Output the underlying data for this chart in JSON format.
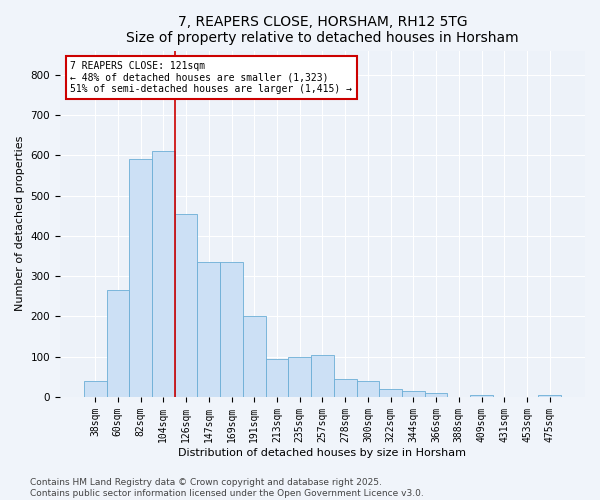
{
  "title": "7, REAPERS CLOSE, HORSHAM, RH12 5TG",
  "subtitle": "Size of property relative to detached houses in Horsham",
  "xlabel": "Distribution of detached houses by size in Horsham",
  "ylabel": "Number of detached properties",
  "categories": [
    "38sqm",
    "60sqm",
    "82sqm",
    "104sqm",
    "126sqm",
    "147sqm",
    "169sqm",
    "191sqm",
    "213sqm",
    "235sqm",
    "257sqm",
    "278sqm",
    "300sqm",
    "322sqm",
    "344sqm",
    "366sqm",
    "388sqm",
    "409sqm",
    "431sqm",
    "453sqm",
    "475sqm"
  ],
  "values": [
    40,
    265,
    590,
    610,
    455,
    335,
    335,
    200,
    95,
    100,
    105,
    45,
    40,
    20,
    15,
    10,
    0,
    5,
    0,
    0,
    5
  ],
  "bar_color": "#cce0f5",
  "bar_edge_color": "#6baed6",
  "vline_x": 4.0,
  "vline_color": "#cc0000",
  "annotation_text": "7 REAPERS CLOSE: 121sqm\n← 48% of detached houses are smaller (1,323)\n51% of semi-detached houses are larger (1,415) →",
  "annotation_box_facecolor": "#ffffff",
  "annotation_box_edgecolor": "#cc0000",
  "ylim": [
    0,
    860
  ],
  "yticks": [
    0,
    100,
    200,
    300,
    400,
    500,
    600,
    700,
    800
  ],
  "fig_facecolor": "#f0f4fa",
  "plot_facecolor": "#edf2f9",
  "grid_color": "#ffffff",
  "footer_text": "Contains HM Land Registry data © Crown copyright and database right 2025.\nContains public sector information licensed under the Open Government Licence v3.0.",
  "title_fontsize": 10,
  "subtitle_fontsize": 9,
  "tick_fontsize": 7,
  "ylabel_fontsize": 8,
  "xlabel_fontsize": 8,
  "annotation_fontsize": 7,
  "footer_fontsize": 6.5
}
